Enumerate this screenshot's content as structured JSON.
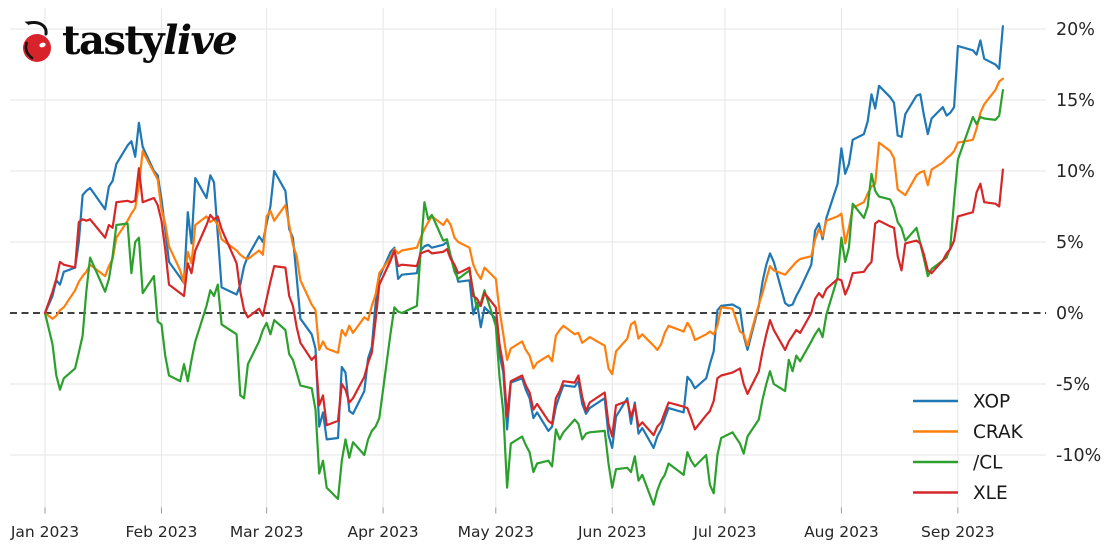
{
  "logo": {
    "brand_first": "tasty",
    "brand_second": "live",
    "cherry_color": "#d8232a",
    "text_color": "#0a0a0a"
  },
  "chart_data": {
    "type": "line",
    "title": "",
    "xlabel": "",
    "ylabel": "",
    "grid": true,
    "background": "#ffffff",
    "gridline_color": "#e6e6e6",
    "zero_line": {
      "value": 0,
      "style": "dashed",
      "color": "#000000"
    },
    "legend": {
      "position": "lower right"
    },
    "x_axis": {
      "unit": "day_of_year_2023",
      "tick_labels": [
        "Jan 2023",
        "Feb 2023",
        "Mar 2023",
        "Apr 2023",
        "May 2023",
        "Jun 2023",
        "Jul 2023",
        "Aug 2023",
        "Sep 2023"
      ],
      "tick_doy": [
        1,
        32,
        60,
        91,
        121,
        152,
        182,
        213,
        244
      ]
    },
    "y_axis": {
      "unit": "percent",
      "tick_labels": [
        "20%",
        "15%",
        "10%",
        "5%",
        "0%",
        "-5%",
        "-10%"
      ],
      "tick_values": [
        20,
        15,
        10,
        5,
        0,
        -5,
        -10
      ],
      "range": [
        -13.9,
        21.6
      ]
    },
    "x_doy": [
      1,
      3,
      4,
      5,
      6,
      9,
      10,
      11,
      12,
      13,
      17,
      18,
      19,
      20,
      23,
      24,
      25,
      26,
      27,
      30,
      31,
      32,
      33,
      34,
      37,
      38,
      39,
      40,
      41,
      44,
      45,
      46,
      47,
      48,
      52,
      53,
      54,
      55,
      58,
      59,
      60,
      61,
      62,
      65,
      66,
      67,
      68,
      69,
      72,
      73,
      74,
      75,
      76,
      79,
      80,
      81,
      82,
      83,
      86,
      87,
      88,
      89,
      90,
      93,
      94,
      95,
      96,
      100,
      101,
      102,
      103,
      104,
      107,
      108,
      109,
      110,
      111,
      114,
      115,
      116,
      117,
      118,
      121,
      122,
      123,
      124,
      125,
      128,
      129,
      130,
      131,
      132,
      135,
      136,
      137,
      138,
      139,
      142,
      143,
      144,
      145,
      146,
      150,
      151,
      152,
      153,
      156,
      157,
      158,
      159,
      160,
      163,
      164,
      165,
      166,
      167,
      171,
      172,
      173,
      174,
      177,
      178,
      179,
      180,
      181,
      184,
      186,
      187,
      188,
      191,
      192,
      193,
      194,
      195,
      198,
      199,
      200,
      201,
      202,
      205,
      206,
      207,
      208,
      209,
      212,
      213,
      214,
      215,
      216,
      219,
      220,
      221,
      222,
      223,
      226,
      227,
      228,
      229,
      230,
      233,
      234,
      235,
      236,
      237,
      240,
      241,
      242,
      243,
      244,
      248,
      249,
      250,
      251,
      254,
      255,
      256
    ],
    "series": [
      {
        "name": "XOP",
        "color": "#1f77b4",
        "values": [
          0,
          1.2,
          2.3,
          2.0,
          2.9,
          3.2,
          5.0,
          8.3,
          8.6,
          8.8,
          7.3,
          8.9,
          9.3,
          10.5,
          11.8,
          12.1,
          11.0,
          13.4,
          11.7,
          10.0,
          9.7,
          8.0,
          5.9,
          3.6,
          2.5,
          2.1,
          7.1,
          4.9,
          9.5,
          8.1,
          9.7,
          9.2,
          5.5,
          1.8,
          1.3,
          2.0,
          3.3,
          4.0,
          5.4,
          5.0,
          6.3,
          7.5,
          10.0,
          8.6,
          5.9,
          5.3,
          2.5,
          -0.4,
          -1.5,
          -2.5,
          -8.0,
          -7.0,
          -8.9,
          -8.8,
          -3.8,
          -4.2,
          -6.9,
          -7.1,
          -5.5,
          -3.2,
          -2.4,
          0.7,
          2.5,
          4.3,
          4.6,
          2.4,
          2.7,
          2.8,
          4.4,
          4.7,
          4.8,
          4.6,
          4.8,
          5.0,
          4.0,
          3.3,
          2.2,
          2.3,
          -0.1,
          0.7,
          -1.0,
          0.4,
          -0.4,
          -2.9,
          -4.2,
          -8.2,
          -4.9,
          -4.6,
          -5.4,
          -6.0,
          -7.4,
          -7.0,
          -8.3,
          -8.0,
          -6.6,
          -5.8,
          -5.1,
          -5.2,
          -4.8,
          -6.4,
          -7.1,
          -6.7,
          -6.0,
          -8.6,
          -9.5,
          -7.3,
          -6.0,
          -7.8,
          -6.3,
          -8.5,
          -8.1,
          -9.5,
          -8.7,
          -8.2,
          -7.4,
          -6.7,
          -7.0,
          -4.5,
          -4.8,
          -5.3,
          -4.6,
          -3.6,
          -2.7,
          0.2,
          0.5,
          0.6,
          0.3,
          -1.6,
          -2.6,
          0.5,
          2.2,
          3.4,
          4.2,
          3.6,
          0.7,
          0.5,
          0.6,
          1.2,
          1.7,
          3.4,
          5.8,
          6.3,
          5.2,
          6.7,
          9.1,
          11.6,
          9.8,
          10.5,
          12.2,
          12.6,
          13.5,
          15.4,
          14.4,
          16.0,
          15.2,
          14.8,
          12.5,
          12.4,
          14.0,
          15.3,
          15.4,
          13.9,
          12.6,
          13.7,
          14.5,
          13.9,
          14.1,
          14.5,
          18.8,
          18.5,
          18.2,
          19.2,
          17.9,
          17.5,
          17.2,
          20.2
        ]
      },
      {
        "name": "CRAK",
        "color": "#ff7f0e",
        "values": [
          0,
          -0.4,
          -0.2,
          0.2,
          0.4,
          1.6,
          2.2,
          2.6,
          2.9,
          3.4,
          2.6,
          3.3,
          3.8,
          5.3,
          6.5,
          7.0,
          7.4,
          9.0,
          11.4,
          9.9,
          9.4,
          7.3,
          6.3,
          4.7,
          3.0,
          2.1,
          4.3,
          3.5,
          6.2,
          6.8,
          6.4,
          6.6,
          6.2,
          5.2,
          4.4,
          4.1,
          3.9,
          3.8,
          4.4,
          4.1,
          6.8,
          7.2,
          6.5,
          7.6,
          6.2,
          4.8,
          4.0,
          2.3,
          0.6,
          0.2,
          -2.6,
          -2.0,
          -2.5,
          -2.8,
          -1.2,
          -1.6,
          -0.9,
          -1.4,
          -0.3,
          -0.5,
          0.5,
          1.3,
          2.8,
          3.9,
          4.5,
          4.2,
          4.4,
          4.6,
          5.3,
          5.9,
          6.4,
          6.8,
          6.2,
          6.6,
          6.2,
          5.3,
          5.0,
          4.6,
          3.4,
          2.8,
          2.4,
          3.2,
          2.4,
          0.2,
          -1.5,
          -3.3,
          -2.5,
          -2.0,
          -2.6,
          -3.0,
          -3.9,
          -3.5,
          -3.0,
          -3.4,
          -1.6,
          -1.2,
          -0.9,
          -1.5,
          -1.4,
          -2.1,
          -1.9,
          -1.7,
          -2.3,
          -3.9,
          -4.3,
          -2.7,
          -1.8,
          -0.8,
          -0.6,
          -1.8,
          -1.5,
          -2.3,
          -2.6,
          -2.2,
          -1.4,
          -0.9,
          -1.3,
          -0.7,
          -1.1,
          -1.9,
          -1.5,
          -1.3,
          -1.5,
          -0.9,
          0.4,
          0.3,
          -1.3,
          -1.5,
          -2.3,
          0.6,
          1.4,
          2.4,
          3.3,
          3.0,
          2.7,
          3.0,
          3.3,
          3.6,
          3.8,
          4.0,
          5.2,
          5.9,
          5.4,
          6.5,
          6.8,
          7.0,
          4.9,
          6.0,
          7.4,
          7.8,
          8.4,
          8.9,
          9.1,
          12.0,
          11.4,
          10.9,
          8.7,
          8.5,
          8.3,
          9.7,
          9.9,
          10.0,
          9.0,
          10.1,
          10.6,
          10.9,
          11.1,
          11.4,
          12.0,
          12.2,
          13.0,
          14.1,
          14.7,
          15.7,
          16.3,
          16.5
        ]
      },
      {
        "name": "/CL",
        "color": "#2ca02c",
        "values": [
          0,
          -2.2,
          -4.4,
          -5.4,
          -4.6,
          -3.9,
          -2.8,
          -1.6,
          1.5,
          3.9,
          1.5,
          2.4,
          4.0,
          6.2,
          6.3,
          2.8,
          5.0,
          5.3,
          1.4,
          2.6,
          -0.6,
          -0.8,
          -3.0,
          -4.4,
          -4.8,
          -3.6,
          -4.8,
          -3.3,
          -2.0,
          0.5,
          1.6,
          1.2,
          2.0,
          -0.8,
          -1.5,
          -5.8,
          -6.0,
          -3.6,
          -2.0,
          -1.2,
          -0.7,
          -1.5,
          -0.5,
          -1.2,
          -2.9,
          -3.3,
          -4.2,
          -5.1,
          -5.3,
          -6.8,
          -11.3,
          -10.4,
          -12.3,
          -13.1,
          -10.4,
          -8.9,
          -10.2,
          -9.1,
          -10.0,
          -8.9,
          -8.3,
          -8.0,
          -7.4,
          -1.4,
          0.4,
          0.1,
          0.0,
          0.5,
          4.4,
          7.8,
          6.6,
          6.9,
          5.1,
          5.2,
          4.0,
          2.9,
          2.4,
          3.0,
          1.5,
          0.3,
          0.7,
          1.6,
          -0.9,
          -4.5,
          -7.0,
          -12.3,
          -9.2,
          -8.7,
          -9.3,
          -9.8,
          -11.2,
          -10.6,
          -10.4,
          -10.8,
          -8.2,
          -8.9,
          -8.4,
          -7.5,
          -7.8,
          -8.9,
          -8.5,
          -8.4,
          -8.3,
          -10.6,
          -12.3,
          -11.0,
          -10.9,
          -11.2,
          -10.1,
          -11.8,
          -11.4,
          -13.5,
          -12.5,
          -11.8,
          -11.4,
          -10.6,
          -11.4,
          -9.8,
          -10.4,
          -10.8,
          -10.0,
          -12.1,
          -12.7,
          -10.0,
          -8.8,
          -8.4,
          -9.2,
          -9.9,
          -8.7,
          -7.5,
          -6.1,
          -5.0,
          -4.1,
          -5.0,
          -5.5,
          -3.3,
          -4.1,
          -3.0,
          -3.4,
          -2.0,
          -1.5,
          -1.1,
          -1.7,
          -0.1,
          2.5,
          5.3,
          3.6,
          4.6,
          7.7,
          6.7,
          7.5,
          9.8,
          8.6,
          8.2,
          8.0,
          7.4,
          6.4,
          6.0,
          5.1,
          6.0,
          4.9,
          3.8,
          2.6,
          3.1,
          3.7,
          3.9,
          4.6,
          7.9,
          10.8,
          13.8,
          13.3,
          13.8,
          13.7,
          13.6,
          13.9,
          15.7
        ]
      },
      {
        "name": "XLE",
        "color": "#d62728",
        "values": [
          0,
          1.5,
          2.4,
          3.6,
          3.4,
          3.2,
          6.4,
          6.6,
          6.5,
          6.6,
          5.3,
          6.2,
          6.0,
          7.8,
          7.9,
          7.8,
          7.9,
          10.2,
          7.8,
          8.1,
          7.6,
          6.5,
          4.5,
          2.0,
          1.4,
          1.2,
          3.5,
          2.8,
          4.4,
          6.2,
          6.9,
          6.6,
          6.8,
          5.9,
          3.5,
          1.5,
          0.2,
          -0.3,
          0.3,
          -0.2,
          1.0,
          2.2,
          3.3,
          3.2,
          1.2,
          0.5,
          -1.0,
          -2.1,
          -3.3,
          -3.0,
          -6.5,
          -5.8,
          -7.9,
          -7.6,
          -5.0,
          -5.4,
          -6.3,
          -6.0,
          -4.5,
          -3.5,
          -2.8,
          -0.5,
          2.0,
          3.7,
          4.4,
          3.3,
          3.4,
          3.3,
          4.2,
          4.3,
          4.4,
          4.2,
          4.3,
          4.5,
          3.8,
          3.4,
          2.8,
          3.2,
          1.2,
          1.0,
          0.5,
          1.4,
          0.4,
          -2.2,
          -3.7,
          -7.3,
          -4.8,
          -4.4,
          -5.1,
          -5.6,
          -6.8,
          -6.4,
          -7.6,
          -7.8,
          -6.0,
          -5.5,
          -4.8,
          -4.9,
          -4.4,
          -5.9,
          -6.9,
          -6.3,
          -5.6,
          -7.8,
          -8.7,
          -6.5,
          -6.2,
          -7.3,
          -6.5,
          -8.0,
          -7.7,
          -8.6,
          -8.0,
          -7.7,
          -7.0,
          -6.3,
          -6.6,
          -6.7,
          -7.4,
          -8.2,
          -7.2,
          -6.9,
          -6.2,
          -4.6,
          -4.4,
          -4.2,
          -3.9,
          -5.0,
          -5.7,
          -4.1,
          -2.7,
          -1.5,
          -0.5,
          -1.2,
          -2.6,
          -2.0,
          -1.6,
          -1.2,
          -1.4,
          0.0,
          1.0,
          1.4,
          1.1,
          1.7,
          2.4,
          2.3,
          1.3,
          1.9,
          2.8,
          2.9,
          3.3,
          3.6,
          6.3,
          6.5,
          6.1,
          6.0,
          4.0,
          3.0,
          4.9,
          5.1,
          4.9,
          4.1,
          3.0,
          2.8,
          3.7,
          4.2,
          4.5,
          5.1,
          6.8,
          7.1,
          8.5,
          9.1,
          7.8,
          7.7,
          7.5,
          10.1
        ]
      }
    ]
  }
}
